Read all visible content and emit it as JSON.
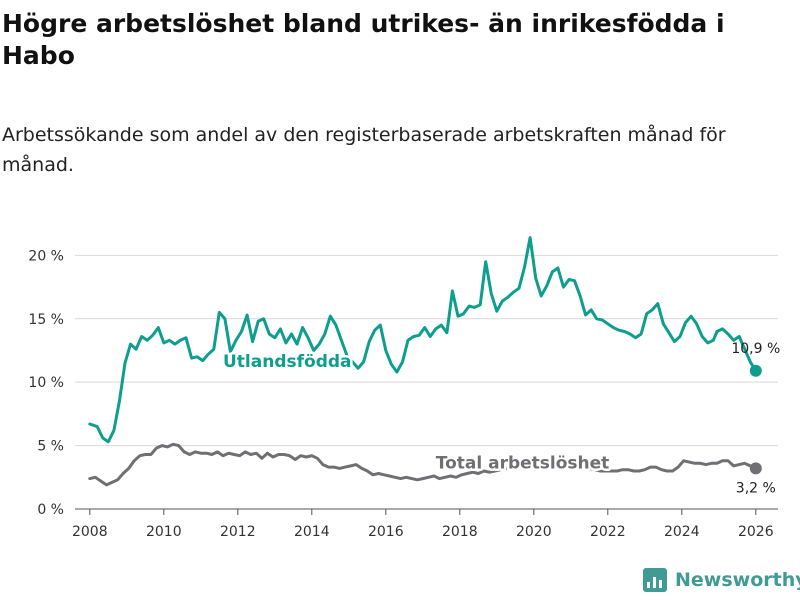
{
  "header": {
    "title": "Högre arbetslöshet bland utrikes- än inrikesfödda i Habo",
    "subtitle": "Arbetssökande som andel av den registerbaserade arbetskraften månad för månad."
  },
  "brand": {
    "name": "Newsworthy",
    "icon": "bar-chart-logo-icon"
  },
  "colors": {
    "foreign": "#0e9e8e",
    "total": "#6f6f74",
    "grid": "#d9d9d9",
    "axis": "#555555",
    "brand": "#3f9b93"
  },
  "chart_data": {
    "type": "line",
    "title": "Högre arbetslöshet bland utrikes- än inrikesfödda i Habo",
    "xlabel": "",
    "ylabel": "",
    "xlim": [
      2007.6,
      2026.6
    ],
    "ylim": [
      0,
      22
    ],
    "x_ticks": [
      2008,
      2010,
      2012,
      2014,
      2016,
      2018,
      2020,
      2022,
      2024,
      2026
    ],
    "x_tick_labels": [
      "2008",
      "2010",
      "2012",
      "2014",
      "2016",
      "2018",
      "2020",
      "2022",
      "2024",
      "2026"
    ],
    "y_ticks": [
      0,
      5,
      10,
      15,
      20
    ],
    "y_tick_labels": [
      "0 %",
      "5 %",
      "10 %",
      "15 %",
      "20 %"
    ],
    "grid": true,
    "legend": "inline labels",
    "series": [
      {
        "name": "Utlandsfödda",
        "label": "Utlandsfödda",
        "color": "#0e9e8e",
        "end_label": "10,9 %",
        "end_value": 10.9,
        "end_x": 2026.0,
        "points": [
          [
            2008.0,
            6.7
          ],
          [
            2008.2,
            6.5
          ],
          [
            2008.35,
            5.6
          ],
          [
            2008.5,
            5.3
          ],
          [
            2008.65,
            6.2
          ],
          [
            2008.8,
            8.5
          ],
          [
            2008.95,
            11.5
          ],
          [
            2009.1,
            13.0
          ],
          [
            2009.25,
            12.6
          ],
          [
            2009.4,
            13.6
          ],
          [
            2009.55,
            13.3
          ],
          [
            2009.7,
            13.7
          ],
          [
            2009.85,
            14.3
          ],
          [
            2010.0,
            13.1
          ],
          [
            2010.15,
            13.3
          ],
          [
            2010.3,
            13.0
          ],
          [
            2010.45,
            13.3
          ],
          [
            2010.6,
            13.5
          ],
          [
            2010.75,
            11.9
          ],
          [
            2010.9,
            12.0
          ],
          [
            2011.05,
            11.7
          ],
          [
            2011.2,
            12.2
          ],
          [
            2011.35,
            12.6
          ],
          [
            2011.5,
            15.5
          ],
          [
            2011.65,
            15.0
          ],
          [
            2011.8,
            12.4
          ],
          [
            2011.95,
            13.3
          ],
          [
            2012.1,
            14.0
          ],
          [
            2012.25,
            15.3
          ],
          [
            2012.4,
            13.2
          ],
          [
            2012.55,
            14.8
          ],
          [
            2012.7,
            15.0
          ],
          [
            2012.85,
            13.8
          ],
          [
            2013.0,
            13.5
          ],
          [
            2013.15,
            14.2
          ],
          [
            2013.3,
            13.1
          ],
          [
            2013.45,
            13.8
          ],
          [
            2013.6,
            13.0
          ],
          [
            2013.75,
            14.3
          ],
          [
            2013.9,
            13.5
          ],
          [
            2014.05,
            12.5
          ],
          [
            2014.2,
            13.0
          ],
          [
            2014.35,
            13.8
          ],
          [
            2014.5,
            15.2
          ],
          [
            2014.65,
            14.5
          ],
          [
            2014.8,
            13.3
          ],
          [
            2014.95,
            12.1
          ],
          [
            2015.1,
            11.6
          ],
          [
            2015.25,
            11.1
          ],
          [
            2015.4,
            11.6
          ],
          [
            2015.55,
            13.2
          ],
          [
            2015.7,
            14.1
          ],
          [
            2015.85,
            14.5
          ],
          [
            2016.0,
            12.5
          ],
          [
            2016.15,
            11.4
          ],
          [
            2016.3,
            10.8
          ],
          [
            2016.45,
            11.6
          ],
          [
            2016.6,
            13.3
          ],
          [
            2016.75,
            13.6
          ],
          [
            2016.9,
            13.7
          ],
          [
            2017.05,
            14.3
          ],
          [
            2017.2,
            13.6
          ],
          [
            2017.35,
            14.2
          ],
          [
            2017.5,
            14.5
          ],
          [
            2017.65,
            13.9
          ],
          [
            2017.8,
            17.2
          ],
          [
            2017.95,
            15.2
          ],
          [
            2018.1,
            15.4
          ],
          [
            2018.25,
            16.0
          ],
          [
            2018.4,
            15.9
          ],
          [
            2018.55,
            16.1
          ],
          [
            2018.7,
            19.5
          ],
          [
            2018.85,
            17.0
          ],
          [
            2019.0,
            15.6
          ],
          [
            2019.15,
            16.4
          ],
          [
            2019.3,
            16.7
          ],
          [
            2019.45,
            17.1
          ],
          [
            2019.6,
            17.4
          ],
          [
            2019.75,
            19.1
          ],
          [
            2019.9,
            21.4
          ],
          [
            2020.05,
            18.2
          ],
          [
            2020.2,
            16.8
          ],
          [
            2020.35,
            17.6
          ],
          [
            2020.5,
            18.7
          ],
          [
            2020.65,
            19.0
          ],
          [
            2020.8,
            17.5
          ],
          [
            2020.95,
            18.1
          ],
          [
            2021.1,
            18.0
          ],
          [
            2021.25,
            16.8
          ],
          [
            2021.4,
            15.3
          ],
          [
            2021.55,
            15.7
          ],
          [
            2021.7,
            15.0
          ],
          [
            2021.85,
            14.9
          ],
          [
            2022.0,
            14.6
          ],
          [
            2022.15,
            14.3
          ],
          [
            2022.3,
            14.1
          ],
          [
            2022.45,
            14.0
          ],
          [
            2022.6,
            13.8
          ],
          [
            2022.75,
            13.5
          ],
          [
            2022.9,
            13.8
          ],
          [
            2023.05,
            15.4
          ],
          [
            2023.2,
            15.7
          ],
          [
            2023.35,
            16.2
          ],
          [
            2023.5,
            14.6
          ],
          [
            2023.65,
            13.9
          ],
          [
            2023.8,
            13.2
          ],
          [
            2023.95,
            13.6
          ],
          [
            2024.1,
            14.7
          ],
          [
            2024.25,
            15.2
          ],
          [
            2024.4,
            14.6
          ],
          [
            2024.55,
            13.6
          ],
          [
            2024.7,
            13.1
          ],
          [
            2024.85,
            13.3
          ],
          [
            2024.95,
            14.0
          ],
          [
            2025.1,
            14.2
          ],
          [
            2025.25,
            13.8
          ],
          [
            2025.4,
            13.3
          ],
          [
            2025.55,
            13.6
          ],
          [
            2025.7,
            12.6
          ],
          [
            2025.85,
            11.6
          ],
          [
            2026.0,
            10.9
          ]
        ]
      },
      {
        "name": "Total arbetslöshet",
        "label": "Total arbetslöshet",
        "color": "#6f6f74",
        "end_label": "3,2 %",
        "end_value": 3.2,
        "end_x": 2026.0,
        "points": [
          [
            2008.0,
            2.4
          ],
          [
            2008.15,
            2.5
          ],
          [
            2008.3,
            2.2
          ],
          [
            2008.45,
            1.9
          ],
          [
            2008.6,
            2.1
          ],
          [
            2008.75,
            2.3
          ],
          [
            2008.9,
            2.8
          ],
          [
            2009.05,
            3.2
          ],
          [
            2009.2,
            3.8
          ],
          [
            2009.35,
            4.2
          ],
          [
            2009.5,
            4.3
          ],
          [
            2009.65,
            4.3
          ],
          [
            2009.8,
            4.8
          ],
          [
            2009.95,
            5.0
          ],
          [
            2010.1,
            4.9
          ],
          [
            2010.25,
            5.1
          ],
          [
            2010.4,
            5.0
          ],
          [
            2010.55,
            4.5
          ],
          [
            2010.7,
            4.3
          ],
          [
            2010.85,
            4.5
          ],
          [
            2011.0,
            4.4
          ],
          [
            2011.15,
            4.4
          ],
          [
            2011.3,
            4.3
          ],
          [
            2011.45,
            4.5
          ],
          [
            2011.6,
            4.2
          ],
          [
            2011.75,
            4.4
          ],
          [
            2011.9,
            4.3
          ],
          [
            2012.05,
            4.2
          ],
          [
            2012.2,
            4.5
          ],
          [
            2012.35,
            4.3
          ],
          [
            2012.5,
            4.4
          ],
          [
            2012.65,
            4.0
          ],
          [
            2012.8,
            4.4
          ],
          [
            2012.95,
            4.1
          ],
          [
            2013.1,
            4.3
          ],
          [
            2013.25,
            4.3
          ],
          [
            2013.4,
            4.2
          ],
          [
            2013.55,
            3.9
          ],
          [
            2013.7,
            4.2
          ],
          [
            2013.85,
            4.1
          ],
          [
            2014.0,
            4.2
          ],
          [
            2014.15,
            4.0
          ],
          [
            2014.3,
            3.5
          ],
          [
            2014.45,
            3.3
          ],
          [
            2014.6,
            3.3
          ],
          [
            2014.75,
            3.2
          ],
          [
            2014.9,
            3.3
          ],
          [
            2015.05,
            3.4
          ],
          [
            2015.2,
            3.5
          ],
          [
            2015.35,
            3.2
          ],
          [
            2015.5,
            3.0
          ],
          [
            2015.65,
            2.7
          ],
          [
            2015.8,
            2.8
          ],
          [
            2015.95,
            2.7
          ],
          [
            2016.1,
            2.6
          ],
          [
            2016.25,
            2.5
          ],
          [
            2016.4,
            2.4
          ],
          [
            2016.55,
            2.5
          ],
          [
            2016.7,
            2.4
          ],
          [
            2016.85,
            2.3
          ],
          [
            2017.0,
            2.4
          ],
          [
            2017.15,
            2.5
          ],
          [
            2017.3,
            2.6
          ],
          [
            2017.45,
            2.4
          ],
          [
            2017.6,
            2.5
          ],
          [
            2017.75,
            2.6
          ],
          [
            2017.9,
            2.5
          ],
          [
            2018.05,
            2.7
          ],
          [
            2018.2,
            2.8
          ],
          [
            2018.35,
            2.9
          ],
          [
            2018.5,
            2.8
          ],
          [
            2018.65,
            3.0
          ],
          [
            2018.8,
            2.9
          ],
          [
            2018.95,
            3.0
          ],
          [
            2019.1,
            3.1
          ],
          [
            2019.25,
            3.2
          ],
          [
            2019.4,
            3.2
          ],
          [
            2019.55,
            3.3
          ],
          [
            2019.7,
            3.4
          ],
          [
            2019.85,
            3.5
          ],
          [
            2020.0,
            3.7
          ],
          [
            2020.15,
            3.8
          ],
          [
            2020.3,
            3.9
          ],
          [
            2020.45,
            3.9
          ],
          [
            2020.6,
            3.8
          ],
          [
            2020.75,
            3.7
          ],
          [
            2020.9,
            3.6
          ],
          [
            2021.05,
            3.5
          ],
          [
            2021.2,
            3.4
          ],
          [
            2021.35,
            3.3
          ],
          [
            2021.5,
            3.2
          ],
          [
            2021.65,
            3.1
          ],
          [
            2021.8,
            3.0
          ],
          [
            2021.95,
            3.0
          ],
          [
            2022.1,
            3.0
          ],
          [
            2022.25,
            3.0
          ],
          [
            2022.4,
            3.1
          ],
          [
            2022.55,
            3.1
          ],
          [
            2022.7,
            3.0
          ],
          [
            2022.85,
            3.0
          ],
          [
            2023.0,
            3.1
          ],
          [
            2023.15,
            3.3
          ],
          [
            2023.3,
            3.3
          ],
          [
            2023.45,
            3.1
          ],
          [
            2023.6,
            3.0
          ],
          [
            2023.75,
            3.0
          ],
          [
            2023.9,
            3.3
          ],
          [
            2024.05,
            3.8
          ],
          [
            2024.2,
            3.7
          ],
          [
            2024.35,
            3.6
          ],
          [
            2024.5,
            3.6
          ],
          [
            2024.65,
            3.5
          ],
          [
            2024.8,
            3.6
          ],
          [
            2024.95,
            3.6
          ],
          [
            2025.1,
            3.8
          ],
          [
            2025.25,
            3.8
          ],
          [
            2025.4,
            3.4
          ],
          [
            2025.55,
            3.5
          ],
          [
            2025.7,
            3.6
          ],
          [
            2025.85,
            3.4
          ],
          [
            2026.0,
            3.2
          ]
        ]
      }
    ]
  }
}
